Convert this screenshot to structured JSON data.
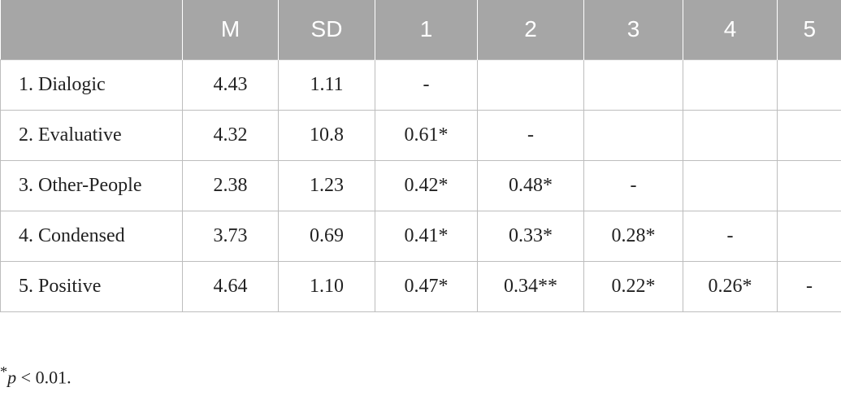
{
  "table": {
    "header": [
      null,
      "M",
      "SD",
      "1",
      "2",
      "3",
      "4",
      "5"
    ],
    "rows": [
      [
        "1. Dialogic",
        "4.43",
        "1.11",
        "-",
        null,
        null,
        null,
        null
      ],
      [
        "2. Evaluative",
        "4.32",
        "10.8",
        "0.61*",
        "-",
        null,
        null,
        null
      ],
      [
        "3. Other-People",
        "2.38",
        "1.23",
        "0.42*",
        "0.48*",
        "-",
        null,
        null
      ],
      [
        "4. Condensed",
        "3.73",
        "0.69",
        "0.41*",
        "0.33*",
        "0.28*",
        "-",
        null
      ],
      [
        "5. Positive",
        "4.64",
        "1.10",
        "0.47*",
        "0.34**",
        "0.22*",
        "0.26*",
        "-"
      ]
    ]
  },
  "footnote": {
    "marker": "*",
    "variable": "p",
    "rest": " < 0.01."
  }
}
